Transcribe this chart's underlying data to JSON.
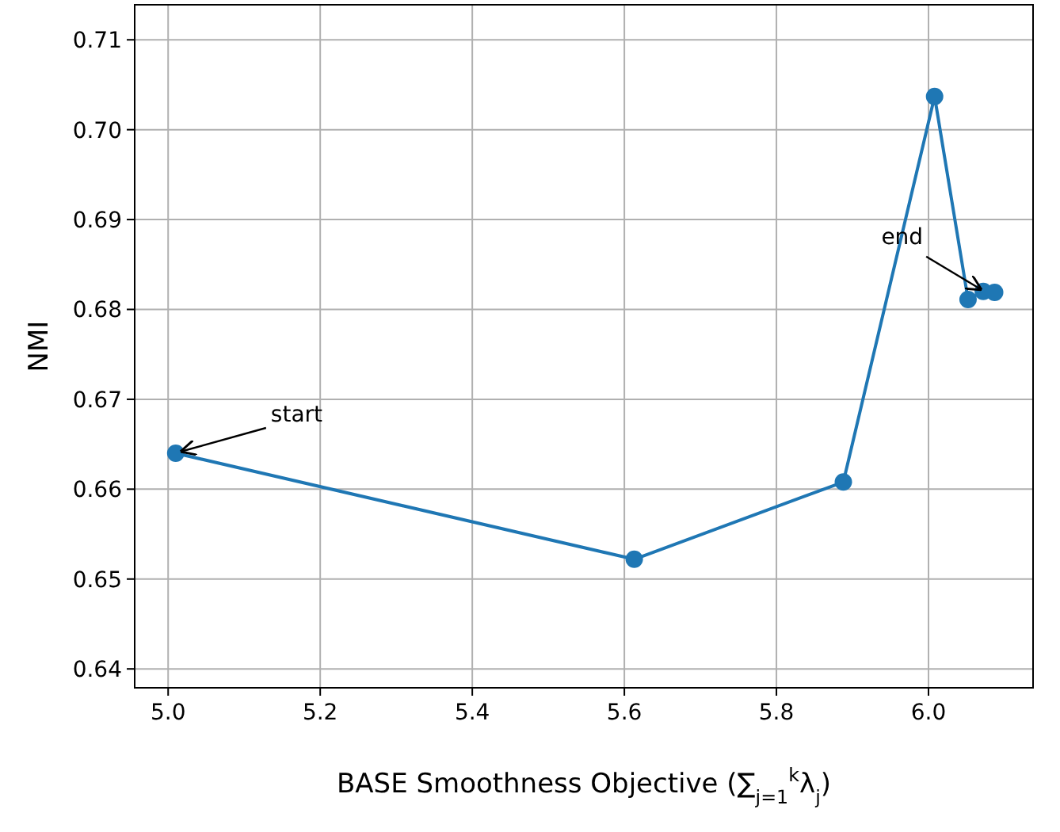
{
  "chart_data": {
    "type": "line",
    "xlabel": "BASE Smoothness Objective (∑$_{j=1}$$^{k}$λ$_{j}$)",
    "ylabel": "NMI",
    "x": [
      5.01,
      5.613,
      5.888,
      6.008,
      6.052,
      6.072,
      6.087
    ],
    "series": [
      {
        "color": "#1f77b4",
        "values": [
          0.664,
          0.6522,
          0.6608,
          0.7037,
          0.6811,
          0.682,
          0.6819
        ]
      }
    ],
    "xlim": [
      4.956,
      6.1375
    ],
    "ylim": [
      0.6379,
      0.7139
    ],
    "xticks": [
      {
        "value": 5.0,
        "label": "5.0"
      },
      {
        "value": 5.2,
        "label": "5.2"
      },
      {
        "value": 5.4,
        "label": "5.4"
      },
      {
        "value": 5.6,
        "label": "5.6"
      },
      {
        "value": 5.8,
        "label": "5.8"
      },
      {
        "value": 6.0,
        "label": "6.0"
      }
    ],
    "yticks": [
      {
        "value": 0.64,
        "label": "0.64"
      },
      {
        "value": 0.65,
        "label": "0.65"
      },
      {
        "value": 0.66,
        "label": "0.66"
      },
      {
        "value": 0.67,
        "label": "0.67"
      },
      {
        "value": 0.68,
        "label": "0.68"
      },
      {
        "value": 0.69,
        "label": "0.69"
      },
      {
        "value": 0.7,
        "label": "0.70"
      },
      {
        "value": 0.71,
        "label": "0.71"
      }
    ],
    "grid": true,
    "marker": "circle",
    "line_style": "solid",
    "annotations": [
      {
        "text": "start",
        "x": 5.01,
        "y": 0.664
      },
      {
        "text": "end",
        "x": 6.072,
        "y": 0.682
      }
    ]
  }
}
